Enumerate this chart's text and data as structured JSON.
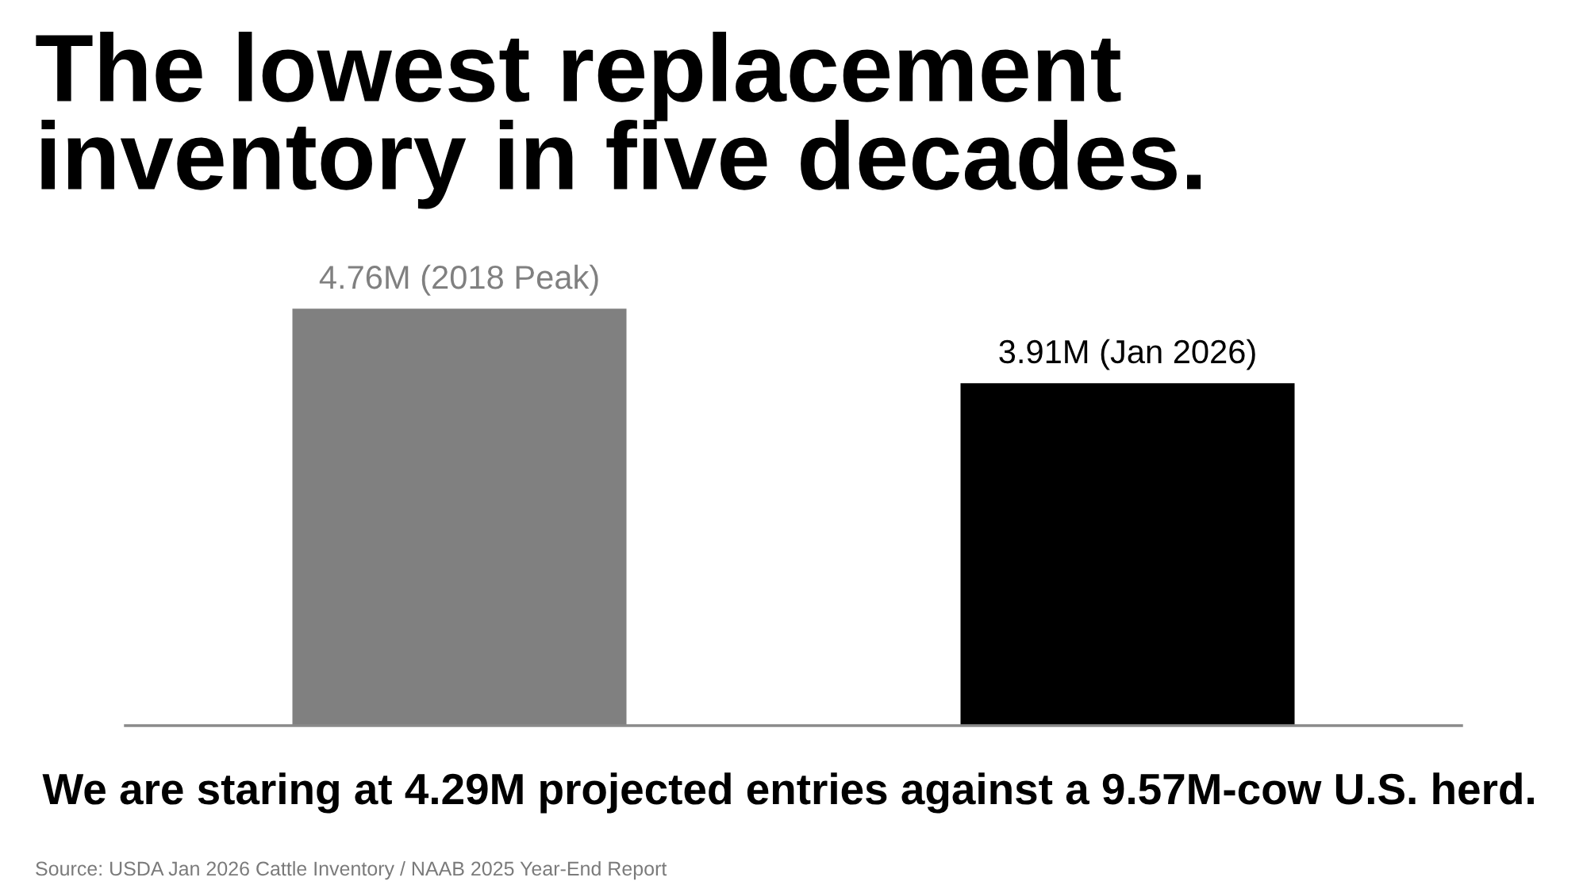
{
  "chart_data": {
    "type": "bar",
    "title": "The lowest replacement\ninventory in five decades.",
    "categories": [
      null,
      null
    ],
    "values": [
      4760000,
      3910000
    ],
    "colors": [
      "#808080",
      "#000000"
    ],
    "value_labels": [
      "4.76M (2018 Peak)",
      "3.91M (Jan 2026)"
    ],
    "tick_labels": false,
    "annotations": [
      "We are staring at 4.29M projected entries against a 9.57M-cow U.S. herd.",
      "Source: USDA Jan 2026 Cattle Inventory / NAAB 2025 Year-End Report"
    ]
  }
}
